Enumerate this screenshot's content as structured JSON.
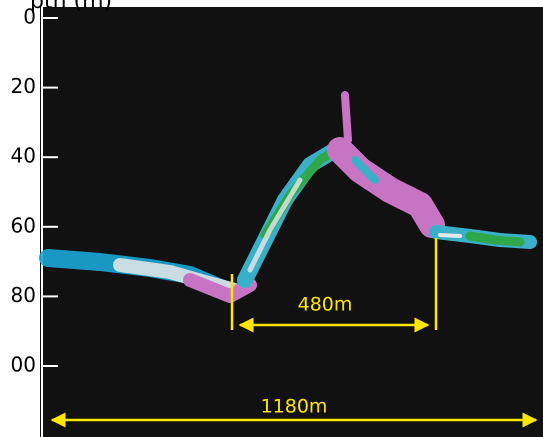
{
  "axis": {
    "label": "pth (m)",
    "ticks": [
      "0",
      "20",
      "40",
      "60",
      "80",
      "00"
    ]
  },
  "annotations": {
    "inner_span": "480m",
    "total_span": "1180m"
  }
}
